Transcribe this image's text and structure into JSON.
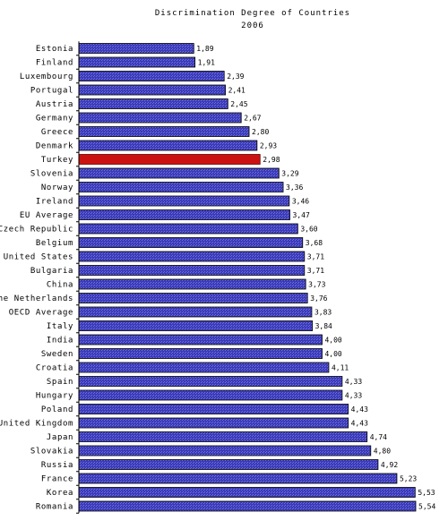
{
  "chart_data": {
    "type": "bar",
    "orientation": "horizontal",
    "title": "Discrimination Degree of Countries",
    "subtitle": "2006",
    "categories": [
      "Estonia",
      "Finland",
      "Luxembourg",
      "Portugal",
      "Austria",
      "Germany",
      "Greece",
      "Denmark",
      "Turkey",
      "Slovenia",
      "Norway",
      "Ireland",
      "EU Average",
      "Czech Republic",
      "Belgium",
      "United States",
      "Bulgaria",
      "China",
      "The Netherlands",
      "OECD Average",
      "Italy",
      "India",
      "Sweden",
      "Croatia",
      "Spain",
      "Hungary",
      "Poland",
      "United Kingdom",
      "Japan",
      "Slovakia",
      "Russia",
      "France",
      "Korea",
      "Romania"
    ],
    "values": [
      1.89,
      1.91,
      2.39,
      2.41,
      2.45,
      2.67,
      2.8,
      2.93,
      2.98,
      3.29,
      3.36,
      3.46,
      3.47,
      3.6,
      3.68,
      3.71,
      3.71,
      3.73,
      3.76,
      3.83,
      3.84,
      4.0,
      4.0,
      4.11,
      4.33,
      4.33,
      4.43,
      4.43,
      4.74,
      4.8,
      4.92,
      5.23,
      5.53,
      5.54
    ],
    "value_labels": [
      "1,89",
      "1,91",
      "2,39",
      "2,41",
      "2,45",
      "2,67",
      "2,80",
      "2,93",
      "2,98",
      "3,29",
      "3,36",
      "3,46",
      "3,47",
      "3,60",
      "3,68",
      "3,71",
      "3,71",
      "3,73",
      "3,76",
      "3,83",
      "3,84",
      "4,00",
      "4,00",
      "4,11",
      "4,33",
      "4,33",
      "4,43",
      "4,43",
      "4,74",
      "4,80",
      "4,92",
      "5,23",
      "5,53",
      "5,54"
    ],
    "highlight": "Turkey",
    "xlim": [
      0,
      5.54
    ],
    "grid": false,
    "legend": "none",
    "colors": {
      "bar": "#3b3bb8",
      "bar_hatch": "#6f6fe0",
      "bar_border": "#000000",
      "highlight": "#cc1111",
      "highlight_border": "#660000"
    }
  }
}
